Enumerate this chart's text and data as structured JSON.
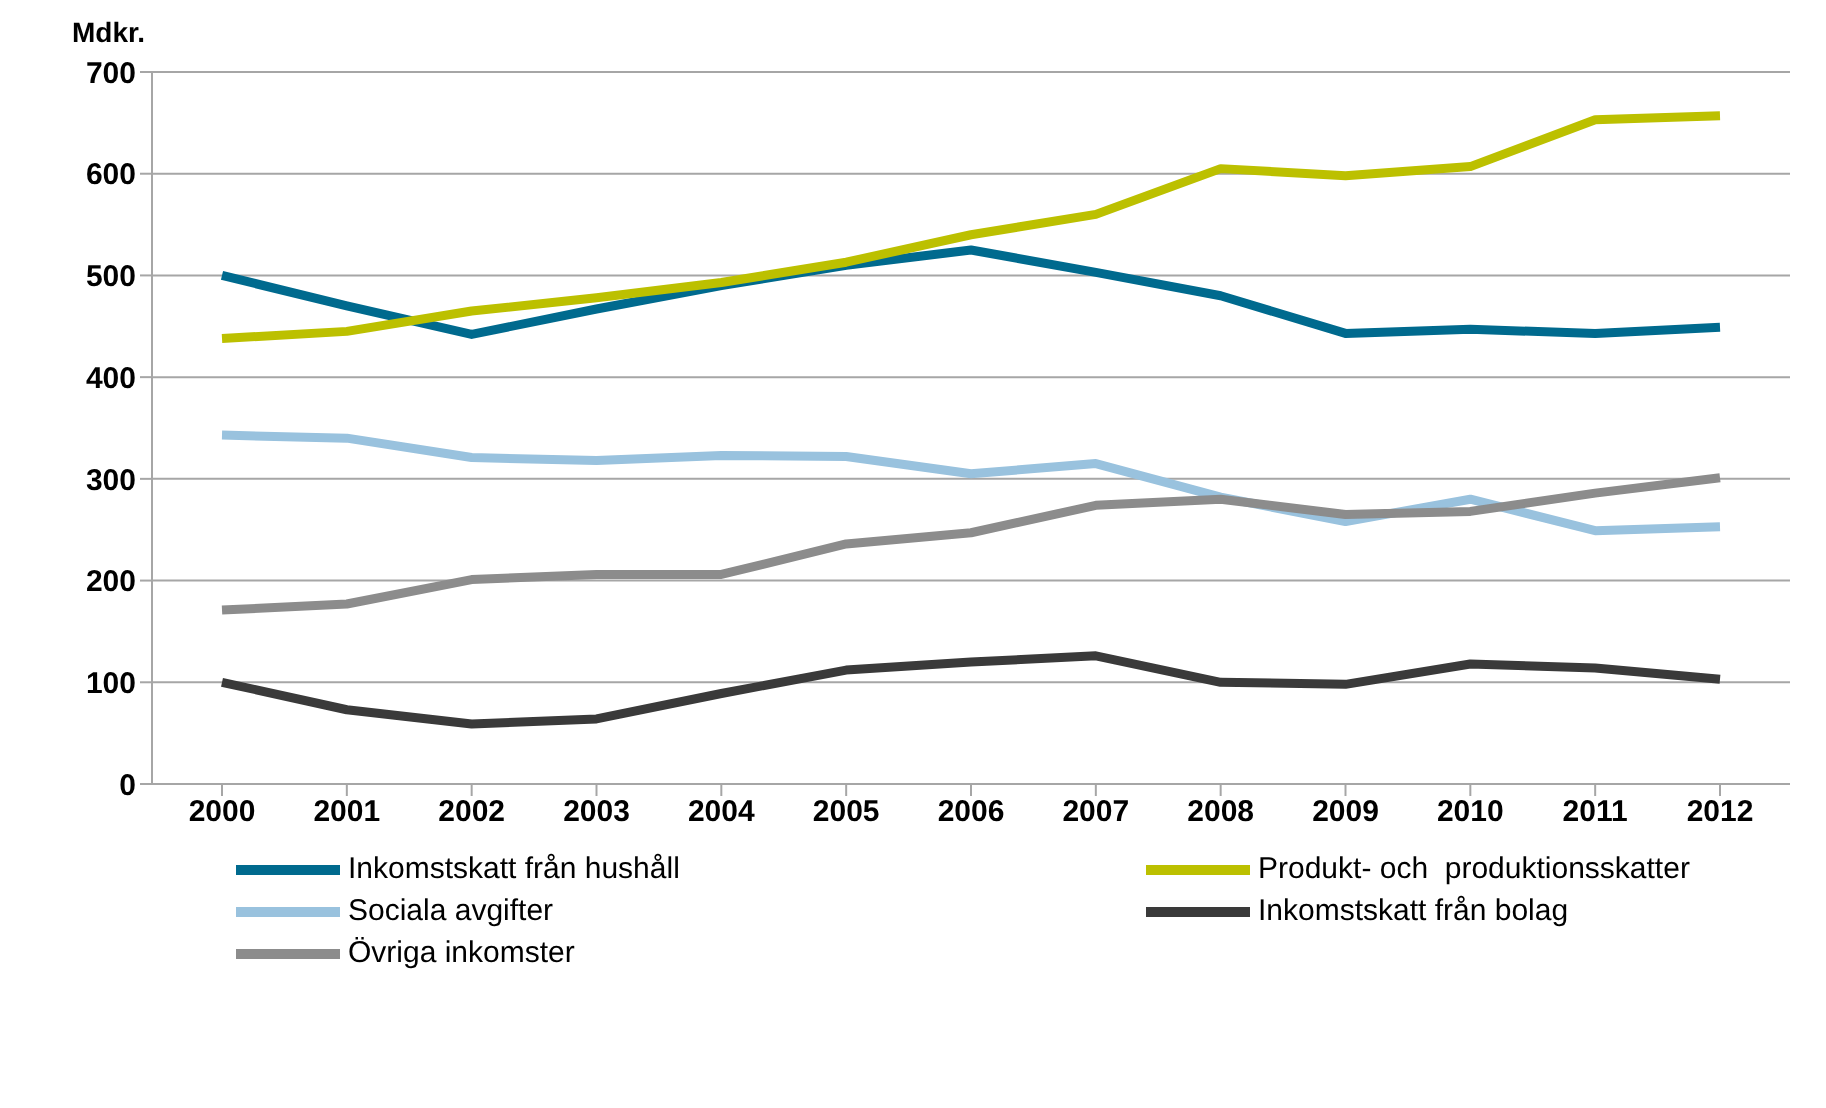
{
  "chart_data": {
    "type": "line",
    "ylabel": "Mdkr.",
    "categories": [
      "2000",
      "2001",
      "2002",
      "2003",
      "2004",
      "2005",
      "2006",
      "2007",
      "2008",
      "2009",
      "2010",
      "2011",
      "2012"
    ],
    "series": [
      {
        "name": "Inkomstskatt från hushåll",
        "color": "#006a8e",
        "values": [
          500,
          470,
          442,
          467,
          490,
          510,
          525,
          503,
          480,
          443,
          447,
          443,
          449
        ]
      },
      {
        "name": "Produkt- och  produktionsskatter",
        "color": "#bcc000",
        "values": [
          438,
          445,
          465,
          478,
          493,
          513,
          540,
          560,
          605,
          598,
          607,
          653,
          657
        ]
      },
      {
        "name": "Sociala avgifter",
        "color": "#99c2de",
        "values": [
          343,
          340,
          321,
          318,
          323,
          322,
          305,
          315,
          282,
          258,
          280,
          249,
          253
        ]
      },
      {
        "name": "Inkomstskatt från bolag",
        "color": "#3a3a3a",
        "values": [
          100,
          73,
          59,
          64,
          89,
          112,
          120,
          126,
          100,
          98,
          118,
          114,
          103
        ]
      },
      {
        "name": "Övriga inkomster",
        "color": "#8c8c8c",
        "values": [
          171,
          177,
          201,
          206,
          206,
          236,
          247,
          274,
          280,
          265,
          268,
          286,
          301
        ]
      }
    ],
    "ylim": [
      0,
      700
    ],
    "yticks": [
      0,
      100,
      200,
      300,
      400,
      500,
      600,
      700
    ],
    "grid": "y",
    "legend": "bottom",
    "marker": "none",
    "line_style": "solid"
  }
}
